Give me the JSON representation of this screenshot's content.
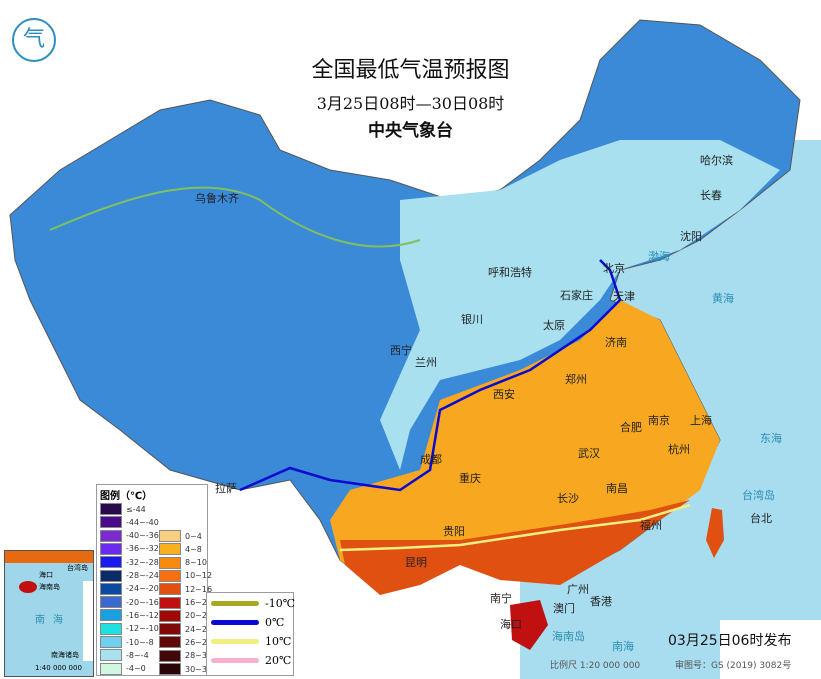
{
  "title": "全国最低气温预报图",
  "subtitle": "3月25日08时—30日08时",
  "agency": "中央气象台",
  "logo_icon": "cma-logo-icon",
  "cities": [
    "乌鲁木齐",
    "哈尔滨",
    "长春",
    "沈阳",
    "北京",
    "天津",
    "呼和浩特",
    "石家庄",
    "太原",
    "银川",
    "济南",
    "西宁",
    "兰州",
    "郑州",
    "西安",
    "南京",
    "上海",
    "合肥",
    "杭州",
    "成都",
    "武汉",
    "拉萨",
    "重庆",
    "长沙",
    "南昌",
    "福州",
    "台北",
    "贵阳",
    "昆明",
    "南宁",
    "广州",
    "澳门",
    "香港",
    "海口"
  ],
  "seas": [
    "渤海",
    "黄海",
    "东海",
    "南海",
    "台湾岛",
    "海南岛"
  ],
  "legend": {
    "title": "图例（℃）",
    "cold": [
      {
        "label": "≤-44",
        "color": "#2a0a4a"
      },
      {
        "label": "-44~-40",
        "color": "#4b0a8a"
      },
      {
        "label": "-40~-36",
        "color": "#7a2ad0"
      },
      {
        "label": "-36~-32",
        "color": "#6a2af0"
      },
      {
        "label": "-32~-28",
        "color": "#1a1af0"
      },
      {
        "label": "-28~-24",
        "color": "#0a2a6a"
      },
      {
        "label": "-24~-20",
        "color": "#0a4aa0"
      },
      {
        "label": "-20~-16",
        "color": "#3a6ad0"
      },
      {
        "label": "-16~-12",
        "color": "#1aa0e0"
      },
      {
        "label": "-12~-10",
        "color": "#20e0e0"
      },
      {
        "label": "-10~-8",
        "color": "#70d0f0"
      },
      {
        "label": "-8~-4",
        "color": "#a8e0f0"
      },
      {
        "label": "-4~0",
        "color": "#d0f8e0"
      }
    ],
    "warm": [
      {
        "label": "0~4",
        "color": "#f8d080"
      },
      {
        "label": "4~8",
        "color": "#f8b020"
      },
      {
        "label": "8~10",
        "color": "#f88a10"
      },
      {
        "label": "10~12",
        "color": "#f87010"
      },
      {
        "label": "12~16",
        "color": "#e05010"
      },
      {
        "label": "16~20",
        "color": "#c01010"
      },
      {
        "label": "20~24",
        "color": "#a00808"
      },
      {
        "label": "24~26",
        "color": "#800808"
      },
      {
        "label": "26~28",
        "color": "#600808"
      },
      {
        "label": "28~30",
        "color": "#400808"
      },
      {
        "label": "30~32",
        "color": "#2a0505"
      }
    ],
    "isotherms": [
      {
        "label": "-10℃",
        "color": "#a8a820"
      },
      {
        "label": "0℃",
        "color": "#0a0ad0"
      },
      {
        "label": "10℃",
        "color": "#f0f080"
      },
      {
        "label": "20℃",
        "color": "#f8b0d0"
      }
    ]
  },
  "inset": {
    "labels": [
      "海口",
      "海南岛",
      "台湾岛",
      "南海",
      "南海诸岛"
    ],
    "scale": "1:40 000 000"
  },
  "published": "03月25日06时发布",
  "scale": "比例尺 1:20 000 000",
  "approval": "审图号：GS (2019) 3082号"
}
